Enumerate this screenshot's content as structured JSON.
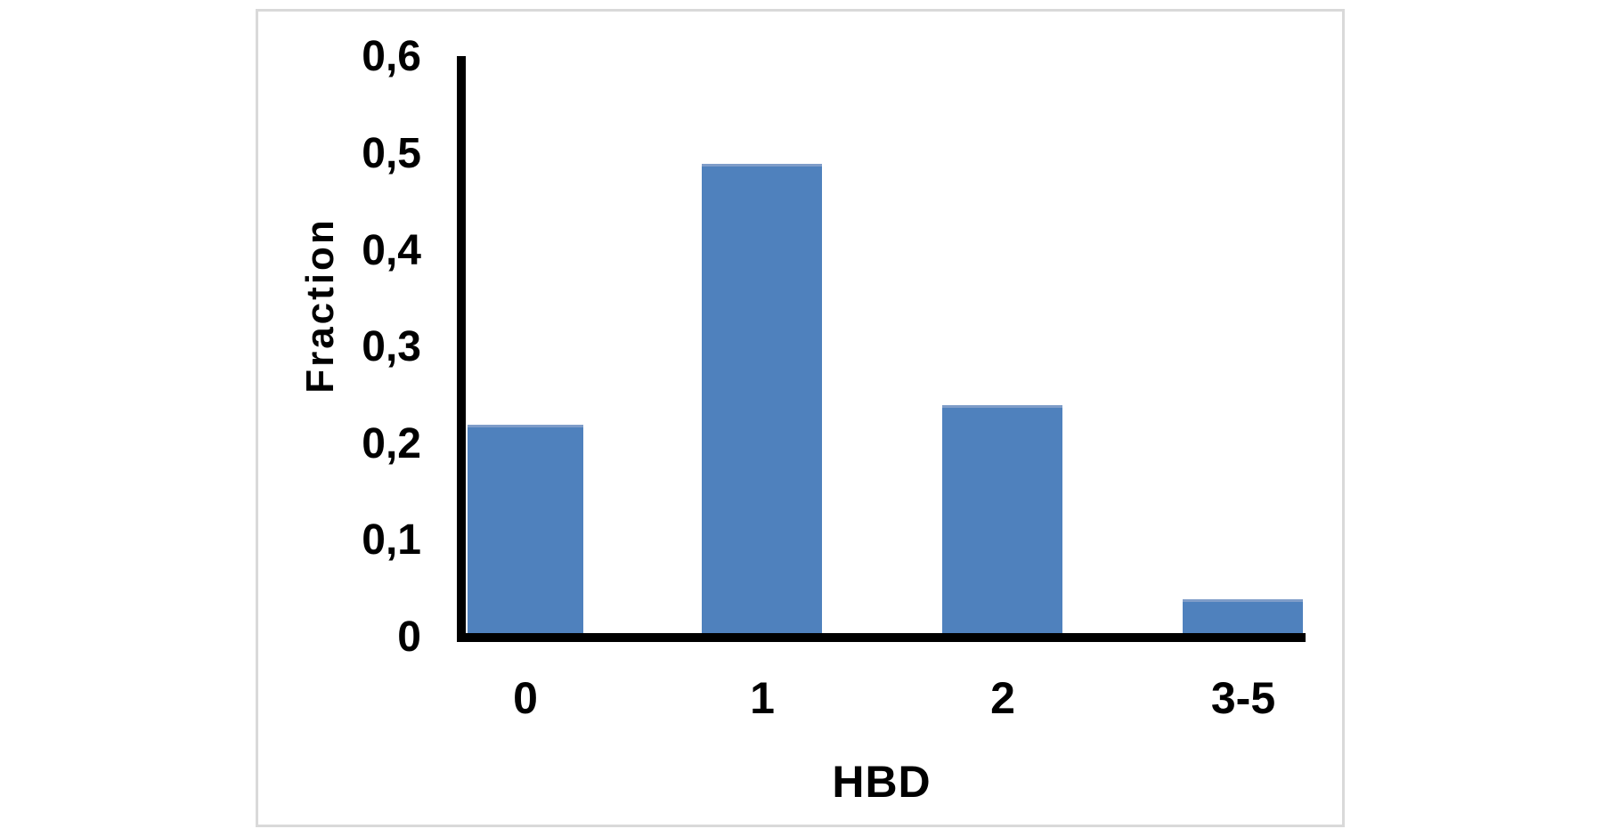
{
  "chart_data": {
    "type": "bar",
    "categories": [
      "0",
      "1",
      "2",
      "3-5"
    ],
    "values": [
      0.22,
      0.49,
      0.24,
      0.04
    ],
    "title": "",
    "xlabel": "HBD",
    "ylabel": "Fraction",
    "ylim": [
      0,
      0.6
    ],
    "ytick_values": [
      0,
      0.1,
      0.2,
      0.3,
      0.4,
      0.5,
      0.6
    ],
    "ytick_labels": [
      "0",
      "0,1",
      "0,2",
      "0,3",
      "0,4",
      "0,5",
      "0,6"
    ],
    "decimal_separator": ",",
    "grid": false,
    "legend": "none",
    "bar_color": "#4F81BD",
    "bar_top_edge_color": "#7F9DC9",
    "axis_color": "#000000"
  },
  "frame": {
    "card_border_color": "#D9D9D9",
    "background_color": "#FFFFFF"
  }
}
